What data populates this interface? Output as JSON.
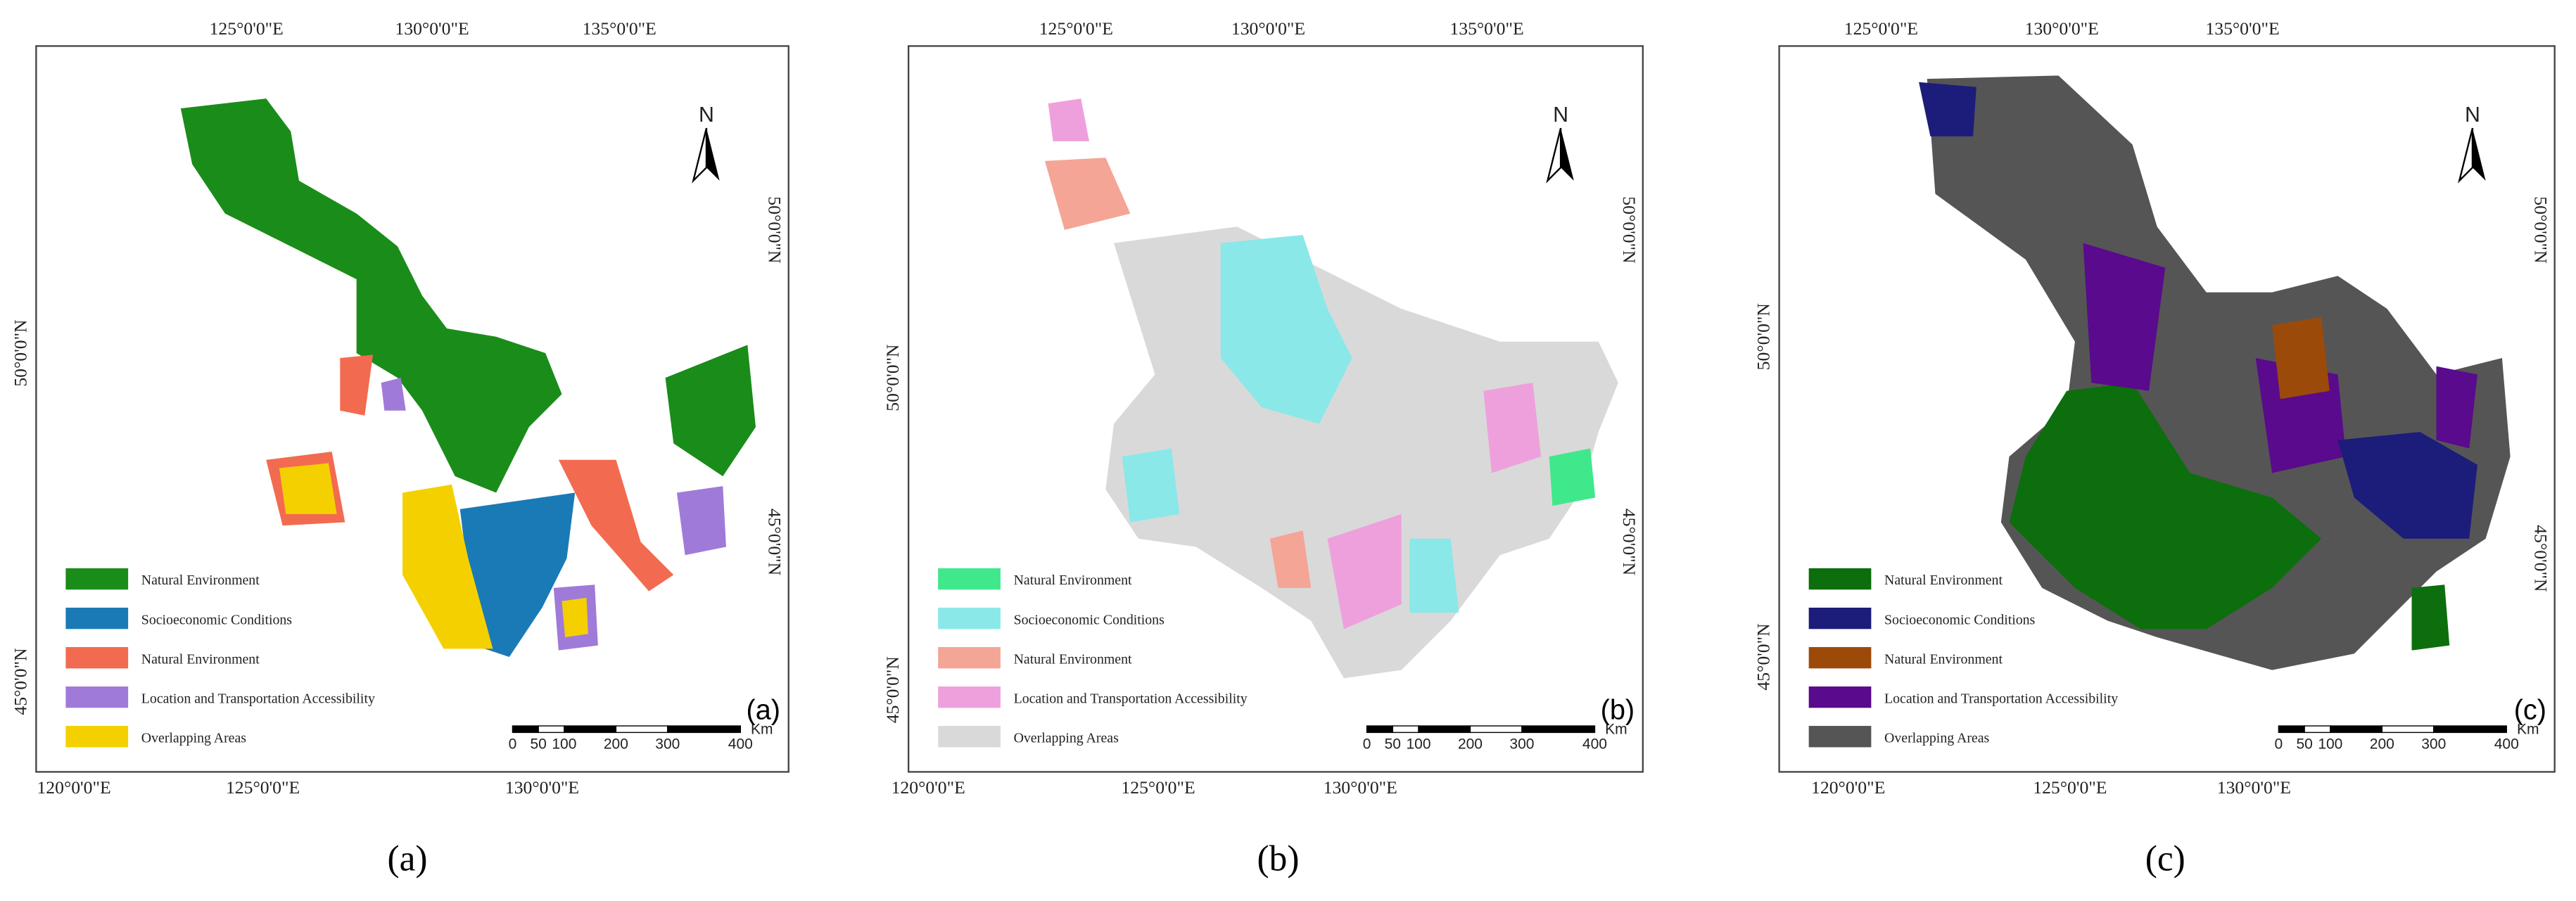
{
  "panels": [
    {
      "panel_label": "(a)",
      "caption": "(a)",
      "north": "N",
      "scale_unit": "Km",
      "scale_labels": [
        "0",
        "50",
        "100",
        "200",
        "300",
        "400"
      ],
      "top_ticks": [
        "125°0'0\"E",
        "130°0'0\"E",
        "135°0'0\"E"
      ],
      "bottom_ticks": [
        "120°0'0\"E",
        "125°0'0\"E",
        "130°0'0\"E"
      ],
      "left_ticks": [
        "50°0'0\"N",
        "45°0'0\"N"
      ],
      "right_ticks": [
        "50°0'0\"N",
        "45°0'0\"N"
      ],
      "legend": [
        {
          "label": "Natural Environment",
          "color": "#1a8c1a"
        },
        {
          "label": "Socioeconomic Conditions",
          "color": "#1a7ab5"
        },
        {
          "label": "Natural Environment",
          "color": "#f26b50"
        },
        {
          "label": "Location and Transportation Accessibility",
          "color": "#a07ad8"
        },
        {
          "label": "Overlapping Areas",
          "color": "#f5d000"
        }
      ]
    },
    {
      "panel_label": "(b)",
      "caption": "(b)",
      "north": "N",
      "scale_unit": "Km",
      "scale_labels": [
        "0",
        "50",
        "100",
        "200",
        "300",
        "400"
      ],
      "top_ticks": [
        "125°0'0\"E",
        "130°0'0\"E",
        "135°0'0\"E"
      ],
      "bottom_ticks": [
        "120°0'0\"E",
        "125°0'0\"E",
        "130°0'0\"E"
      ],
      "left_ticks": [
        "50°0'0\"N",
        "45°0'0\"N"
      ],
      "right_ticks": [
        "50°0'0\"N",
        "45°0'0\"N"
      ],
      "legend": [
        {
          "label": "Natural Environment",
          "color": "#3fe88a"
        },
        {
          "label": "Socioeconomic Conditions",
          "color": "#8ae8e8"
        },
        {
          "label": "Natural Environment",
          "color": "#f4a595"
        },
        {
          "label": "Location and Transportation Accessibility",
          "color": "#eea0dc"
        },
        {
          "label": "Overlapping Areas",
          "color": "#d9d9d9"
        }
      ]
    },
    {
      "panel_label": "(c)",
      "caption": "(c)",
      "north": "N",
      "scale_unit": "Km",
      "scale_labels": [
        "0",
        "50",
        "100",
        "200",
        "300",
        "400"
      ],
      "top_ticks": [
        "125°0'0\"E",
        "130°0'0\"E",
        "135°0'0\"E"
      ],
      "bottom_ticks": [
        "120°0'0\"E",
        "125°0'0\"E",
        "130°0'0\"E"
      ],
      "left_ticks": [
        "50°0'0\"N",
        "45°0'0\"N"
      ],
      "right_ticks": [
        "50°0'0\"N",
        "45°0'0\"N"
      ],
      "legend": [
        {
          "label": "Natural Environment",
          "color": "#0c6e0c"
        },
        {
          "label": "Socioeconomic Conditions",
          "color": "#1c1c7a"
        },
        {
          "label": "Natural Environment",
          "color": "#9c4a0a"
        },
        {
          "label": "Location and Transportation Accessibility",
          "color": "#5a0a8c"
        },
        {
          "label": "Overlapping Areas",
          "color": "#555555"
        }
      ]
    }
  ]
}
